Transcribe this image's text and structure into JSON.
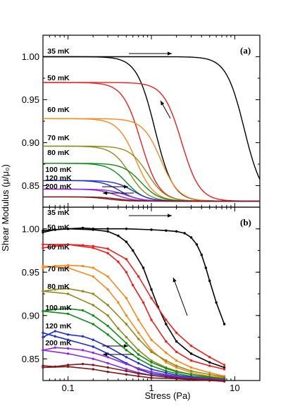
{
  "chart_data": [
    {
      "type": "line",
      "panel_label": "(a)",
      "xlabel": "Stress (Pa)",
      "ylabel": "Shear Modulus (μ/μ₀)",
      "xscale": "log",
      "xlim": [
        0.05,
        20
      ],
      "ylim": [
        0.825,
        1.025
      ],
      "x_ticks": [
        "0.1",
        "1",
        "10"
      ],
      "y_ticks": [
        0.85,
        0.9,
        0.95,
        1.0
      ],
      "y_tick_labels": [
        "0.85",
        "0.90",
        "0.95",
        "1.00"
      ],
      "series": [
        {
          "name": "35 mK",
          "color": "#000000",
          "plateau": 1.0,
          "x_drop_up": 13.0,
          "x_drop_down": 1.1
        },
        {
          "name": "50 mK",
          "color": "#e8211e",
          "plateau": 0.97,
          "x_drop_up": 2.3,
          "x_drop_down": 0.75
        },
        {
          "name": "60 mK",
          "color": "#f5891f",
          "plateau": 0.928,
          "x_drop_up": 1.3,
          "x_drop_down": 0.65
        },
        {
          "name": "70 mK",
          "color": "#8d8b1d",
          "plateau": 0.896,
          "x_drop_up": 0.9,
          "x_drop_down": 0.55
        },
        {
          "name": "80 mK",
          "color": "#138a1d",
          "plateau": 0.876,
          "x_drop_up": 0.75,
          "x_drop_down": 0.5
        },
        {
          "name": "100 mK",
          "color": "#1f2fd0",
          "plateau": 0.856,
          "x_drop_up": 0.6,
          "x_drop_down": 0.42
        },
        {
          "name": "120 mK",
          "color": "#8a2be2",
          "plateau": 0.846,
          "x_drop_up": 0.5,
          "x_drop_down": 0.38
        },
        {
          "name": "200 mK",
          "color": "#7a1a1a",
          "plateau": 0.837,
          "x_drop_up": 0.4,
          "x_drop_down": 0.3
        }
      ],
      "baseline": 0.832
    },
    {
      "type": "line",
      "panel_label": "(b)",
      "xlabel": "Stress (Pa)",
      "ylabel": "Shear Modulus (μ/μ₀)",
      "xscale": "log",
      "xlim": [
        0.05,
        20
      ],
      "ylim": [
        0.825,
        1.025
      ],
      "x_ticks": [
        "0.1",
        "1",
        "10"
      ],
      "y_ticks": [
        0.85,
        0.9,
        0.95,
        1.0
      ],
      "y_tick_labels": [
        "0.85",
        "0.90",
        "0.95",
        "1.00"
      ],
      "series": [
        {
          "name": "35 mK",
          "color": "#000000",
          "up": [
            [
              0.05,
              0.996
            ],
            [
              0.07,
              0.999
            ],
            [
              0.1,
              1.0
            ],
            [
              0.15,
              1.001
            ],
            [
              0.2,
              1.0
            ],
            [
              0.3,
              1.0
            ],
            [
              0.5,
              1.0
            ],
            [
              1,
              0.999
            ],
            [
              1.5,
              0.998
            ],
            [
              2,
              0.997
            ],
            [
              2.5,
              0.995
            ],
            [
              3,
              0.99
            ],
            [
              3.5,
              0.982
            ],
            [
              4,
              0.97
            ],
            [
              4.5,
              0.955
            ],
            [
              5,
              0.94
            ],
            [
              6,
              0.915
            ],
            [
              7.5,
              0.89
            ]
          ],
          "down": [
            [
              7.5,
              0.84
            ],
            [
              5,
              0.846
            ],
            [
              3,
              0.856
            ],
            [
              2,
              0.87
            ],
            [
              1.5,
              0.89
            ],
            [
              1.2,
              0.91
            ],
            [
              1,
              0.93
            ],
            [
              0.8,
              0.955
            ],
            [
              0.6,
              0.975
            ],
            [
              0.5,
              0.985
            ],
            [
              0.4,
              0.992
            ],
            [
              0.3,
              0.997
            ],
            [
              0.2,
              0.999
            ],
            [
              0.1,
              1.0
            ],
            [
              0.05,
              0.998
            ]
          ]
        },
        {
          "name": "50 mK",
          "color": "#e8211e",
          "up": [
            [
              0.05,
              0.978
            ],
            [
              0.07,
              0.98
            ],
            [
              0.1,
              0.982
            ],
            [
              0.15,
              0.981
            ],
            [
              0.2,
              0.98
            ],
            [
              0.3,
              0.977
            ],
            [
              0.5,
              0.965
            ],
            [
              0.7,
              0.945
            ],
            [
              1,
              0.92
            ],
            [
              1.5,
              0.895
            ],
            [
              2,
              0.88
            ],
            [
              3,
              0.865
            ],
            [
              5,
              0.852
            ],
            [
              7.5,
              0.843
            ]
          ],
          "down": [
            [
              7.5,
              0.838
            ],
            [
              5,
              0.842
            ],
            [
              3,
              0.848
            ],
            [
              2,
              0.858
            ],
            [
              1.5,
              0.87
            ],
            [
              1,
              0.895
            ],
            [
              0.8,
              0.915
            ],
            [
              0.6,
              0.935
            ],
            [
              0.5,
              0.95
            ],
            [
              0.4,
              0.962
            ],
            [
              0.3,
              0.972
            ],
            [
              0.2,
              0.978
            ],
            [
              0.1,
              0.982
            ],
            [
              0.05,
              0.982
            ]
          ]
        },
        {
          "name": "60 mK",
          "color": "#f5891f",
          "up": [
            [
              0.05,
              0.955
            ],
            [
              0.07,
              0.957
            ],
            [
              0.1,
              0.958
            ],
            [
              0.15,
              0.957
            ],
            [
              0.2,
              0.955
            ],
            [
              0.3,
              0.945
            ],
            [
              0.5,
              0.92
            ],
            [
              0.7,
              0.895
            ],
            [
              1,
              0.872
            ],
            [
              1.5,
              0.857
            ],
            [
              2,
              0.848
            ],
            [
              3,
              0.84
            ],
            [
              5,
              0.834
            ],
            [
              7.5,
              0.83
            ]
          ],
          "down": [
            [
              7.5,
              0.828
            ],
            [
              5,
              0.83
            ],
            [
              3,
              0.834
            ],
            [
              2,
              0.84
            ],
            [
              1.5,
              0.846
            ],
            [
              1,
              0.86
            ],
            [
              0.7,
              0.88
            ],
            [
              0.5,
              0.9
            ],
            [
              0.4,
              0.915
            ],
            [
              0.3,
              0.93
            ],
            [
              0.2,
              0.945
            ],
            [
              0.1,
              0.955
            ],
            [
              0.05,
              0.957
            ]
          ]
        },
        {
          "name": "70 mK",
          "color": "#8d8b1d",
          "up": [
            [
              0.05,
              0.928
            ],
            [
              0.07,
              0.93
            ],
            [
              0.1,
              0.931
            ],
            [
              0.15,
              0.928
            ],
            [
              0.2,
              0.925
            ],
            [
              0.3,
              0.912
            ],
            [
              0.5,
              0.89
            ],
            [
              0.7,
              0.873
            ],
            [
              1,
              0.858
            ],
            [
              1.5,
              0.848
            ],
            [
              2,
              0.842
            ],
            [
              3,
              0.836
            ],
            [
              5,
              0.832
            ],
            [
              7.5,
              0.829
            ]
          ],
          "down": [
            [
              7.5,
              0.827
            ],
            [
              5,
              0.829
            ],
            [
              3,
              0.832
            ],
            [
              2,
              0.836
            ],
            [
              1.5,
              0.84
            ],
            [
              1,
              0.848
            ],
            [
              0.7,
              0.86
            ],
            [
              0.5,
              0.875
            ],
            [
              0.4,
              0.885
            ],
            [
              0.3,
              0.9
            ],
            [
              0.2,
              0.912
            ],
            [
              0.1,
              0.925
            ],
            [
              0.05,
              0.928
            ]
          ]
        },
        {
          "name": "80 mK",
          "color": "#138a1d",
          "up": [
            [
              0.05,
              0.905
            ],
            [
              0.07,
              0.907
            ],
            [
              0.1,
              0.908
            ],
            [
              0.15,
              0.906
            ],
            [
              0.2,
              0.9
            ],
            [
              0.3,
              0.888
            ],
            [
              0.5,
              0.868
            ],
            [
              0.7,
              0.855
            ],
            [
              1,
              0.846
            ],
            [
              1.5,
              0.839
            ],
            [
              2,
              0.835
            ],
            [
              3,
              0.832
            ],
            [
              5,
              0.829
            ],
            [
              7.5,
              0.827
            ]
          ],
          "down": [
            [
              7.5,
              0.826
            ],
            [
              5,
              0.828
            ],
            [
              3,
              0.83
            ],
            [
              2,
              0.833
            ],
            [
              1.5,
              0.836
            ],
            [
              1,
              0.842
            ],
            [
              0.7,
              0.85
            ],
            [
              0.5,
              0.86
            ],
            [
              0.3,
              0.878
            ],
            [
              0.2,
              0.89
            ],
            [
              0.1,
              0.902
            ],
            [
              0.05,
              0.905
            ]
          ]
        },
        {
          "name": "100 mK",
          "color": "#1f2fd0",
          "up": [
            [
              0.05,
              0.875
            ],
            [
              0.07,
              0.882
            ],
            [
              0.1,
              0.878
            ],
            [
              0.15,
              0.876
            ],
            [
              0.2,
              0.872
            ],
            [
              0.3,
              0.864
            ],
            [
              0.5,
              0.852
            ],
            [
              0.7,
              0.845
            ],
            [
              1,
              0.838
            ],
            [
              1.5,
              0.834
            ],
            [
              2,
              0.831
            ],
            [
              3,
              0.829
            ],
            [
              5,
              0.827
            ],
            [
              7.5,
              0.826
            ]
          ],
          "down": [
            [
              7.5,
              0.825
            ],
            [
              5,
              0.826
            ],
            [
              3,
              0.827
            ],
            [
              2,
              0.829
            ],
            [
              1,
              0.833
            ],
            [
              0.7,
              0.838
            ],
            [
              0.5,
              0.845
            ],
            [
              0.3,
              0.856
            ],
            [
              0.2,
              0.864
            ],
            [
              0.1,
              0.872
            ],
            [
              0.07,
              0.876
            ],
            [
              0.05,
              0.88
            ]
          ]
        },
        {
          "name": "120 mK",
          "color": "#8a2be2",
          "up": [
            [
              0.05,
              0.86
            ],
            [
              0.07,
              0.863
            ],
            [
              0.1,
              0.862
            ],
            [
              0.15,
              0.86
            ],
            [
              0.2,
              0.857
            ],
            [
              0.3,
              0.852
            ],
            [
              0.5,
              0.844
            ],
            [
              0.7,
              0.839
            ],
            [
              1,
              0.835
            ],
            [
              1.5,
              0.832
            ],
            [
              2,
              0.83
            ],
            [
              3,
              0.828
            ],
            [
              5,
              0.827
            ],
            [
              7.5,
              0.826
            ]
          ],
          "down": [
            [
              7.5,
              0.825
            ],
            [
              5,
              0.826
            ],
            [
              3,
              0.827
            ],
            [
              2,
              0.828
            ],
            [
              1,
              0.831
            ],
            [
              0.7,
              0.834
            ],
            [
              0.5,
              0.838
            ],
            [
              0.3,
              0.845
            ],
            [
              0.2,
              0.85
            ],
            [
              0.1,
              0.856
            ],
            [
              0.05,
              0.86
            ]
          ]
        },
        {
          "name": "200 mK",
          "color": "#7a1a1a",
          "up": [
            [
              0.05,
              0.842
            ],
            [
              0.07,
              0.841
            ],
            [
              0.1,
              0.843
            ],
            [
              0.15,
              0.844
            ],
            [
              0.2,
              0.843
            ],
            [
              0.3,
              0.84
            ],
            [
              0.5,
              0.836
            ],
            [
              0.7,
              0.833
            ],
            [
              1,
              0.831
            ],
            [
              1.5,
              0.829
            ],
            [
              2,
              0.828
            ],
            [
              3,
              0.827
            ],
            [
              5,
              0.826
            ],
            [
              7.5,
              0.825
            ]
          ],
          "down": [
            [
              7.5,
              0.824
            ],
            [
              5,
              0.825
            ],
            [
              3,
              0.826
            ],
            [
              2,
              0.827
            ],
            [
              1,
              0.828
            ],
            [
              0.7,
              0.83
            ],
            [
              0.5,
              0.832
            ],
            [
              0.3,
              0.835
            ],
            [
              0.2,
              0.838
            ],
            [
              0.1,
              0.841
            ],
            [
              0.05,
              0.84
            ]
          ]
        }
      ]
    }
  ],
  "shared_axis": {
    "ylabel": "Shear Modulus (μ/μ₀)",
    "xlabel": "Stress (Pa)"
  }
}
